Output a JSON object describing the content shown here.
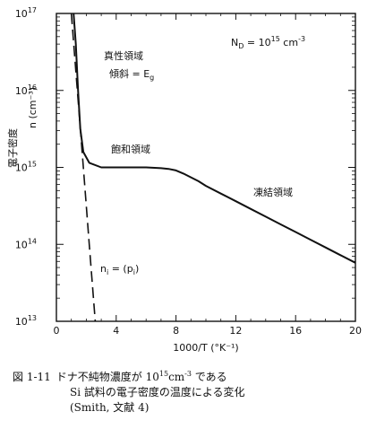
{
  "chart_data": {
    "type": "line",
    "xlabel": "1000/T (°K⁻¹)",
    "ylabel_main": "n (cm⁻³)",
    "ylabel_side": "電子密度",
    "xlim": [
      0,
      20
    ],
    "ylim": [
      13,
      17
    ],
    "yscale": "log",
    "x_ticks": [
      0,
      4,
      8,
      12,
      16,
      20
    ],
    "x_tick_labels": [
      "0",
      "4",
      "8",
      "12",
      "16",
      "20"
    ],
    "y_tick_labels": [
      {
        "base": "10",
        "exp": "13",
        "value": 13
      },
      {
        "base": "10",
        "exp": "14",
        "value": 14
      },
      {
        "base": "10",
        "exp": "15",
        "value": 15
      },
      {
        "base": "10",
        "exp": "16",
        "value": 16
      },
      {
        "base": "10",
        "exp": "17",
        "value": 17
      }
    ],
    "series": [
      {
        "name": "",
        "style": "solid",
        "x": [
          1.15,
          1.3,
          1.45,
          1.6,
          1.8,
          2.2,
          3.0,
          4.0,
          5.0,
          6.0,
          7.0,
          7.5,
          8.0,
          8.5,
          9.0,
          9.5,
          10.0,
          11.0,
          12.0,
          13.0,
          14.0,
          15.0,
          16.0,
          17.0,
          18.0,
          19.0,
          20.0
        ],
        "log10_n": [
          17.0,
          16.6,
          16.0,
          15.5,
          15.2,
          15.06,
          15.0,
          15.0,
          15.0,
          15.0,
          14.99,
          14.98,
          14.96,
          14.92,
          14.87,
          14.82,
          14.76,
          14.66,
          14.56,
          14.46,
          14.36,
          14.26,
          14.16,
          14.06,
          13.96,
          13.86,
          13.76
        ]
      },
      {
        "name": "n_i = (p_i)",
        "style": "dashed",
        "x": [
          1.0,
          1.4,
          1.8,
          2.2,
          2.6
        ],
        "log10_n": [
          17.0,
          16.0,
          15.0,
          14.0,
          13.0
        ]
      }
    ],
    "annotations": {
      "nd_label": "N",
      "nd_sub": "D",
      "nd_value": " = 10",
      "nd_exp": "15",
      "nd_unit": " cm",
      "nd_unit_exp": "-3",
      "intrinsic_title": "真性領域",
      "slope_text": "傾斜 = E",
      "slope_sub": "g",
      "saturation": "飽和領域",
      "freezeout": "凍結領域",
      "ni_label": "n",
      "ni_sub": "i",
      "ni_mid": " = (p",
      "pi_sub": "i",
      "ni_end": ")"
    }
  },
  "caption": {
    "label": "図 1-11",
    "line1_a": "ドナ不純物濃度が 10",
    "line1_exp": "15",
    "line1_b": "cm",
    "line1_exp2": "-3",
    "line1_c": " である",
    "line2": "Si 試料の電子密度の温度による変化",
    "line3": "(Smith, 文献 4)"
  }
}
